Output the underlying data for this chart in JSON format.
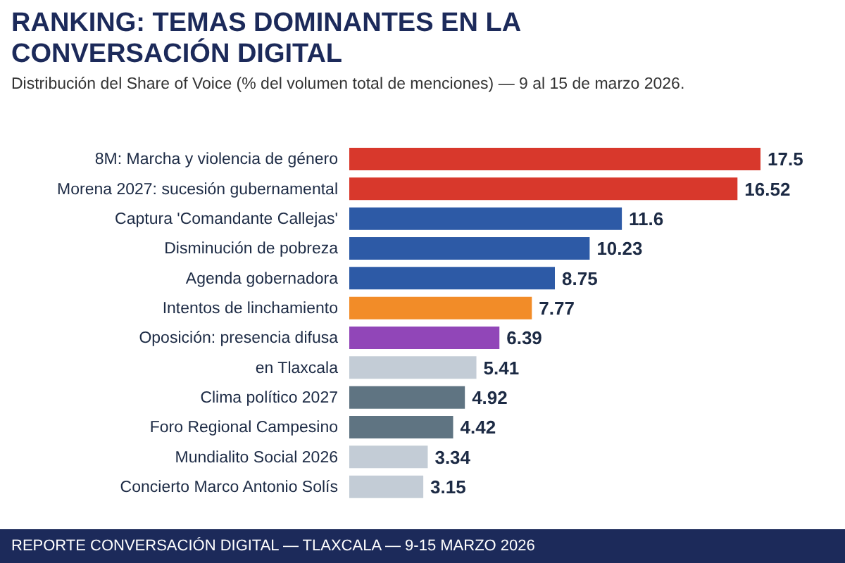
{
  "chart_data": {
    "type": "bar",
    "orientation": "horizontal",
    "title": "RANKING: TEMAS DOMINANTES EN LA CONVERSACIÓN DIGITAL",
    "subtitle": "Distribución del Share of Voice (% del volumen total de menciones) — 9 al 15 de marzo 2026.",
    "categories": [
      "8M: Marcha y violencia de género",
      "Morena 2027: sucesión gubernamental",
      "Captura 'Comandante Callejas'",
      "Disminución de pobreza",
      "Agenda gobernadora",
      "Intentos de linchamiento",
      "Oposición: presencia difusa",
      "en Tlaxcala",
      "Clima político 2027",
      "Foro Regional Campesino",
      "Mundialito Social 2026",
      "Concierto Marco Antonio Solís"
    ],
    "values": [
      17.5,
      16.52,
      11.6,
      10.23,
      8.75,
      7.77,
      6.39,
      5.41,
      4.92,
      4.42,
      3.34,
      3.15
    ],
    "colors": [
      "#d8382c",
      "#d8382c",
      "#2d5aa6",
      "#2d5aa6",
      "#2d5aa6",
      "#f28c28",
      "#9146b8",
      "#c3ccd6",
      "#5f7482",
      "#5f7482",
      "#c3ccd6",
      "#c3ccd6"
    ],
    "data_labels": true,
    "grid": false,
    "legend": false,
    "annotations": [
      "REPORTE CONVERSACIÓN DIGITAL — TLAXCALA — 9-15 MARZO 2026"
    ]
  }
}
